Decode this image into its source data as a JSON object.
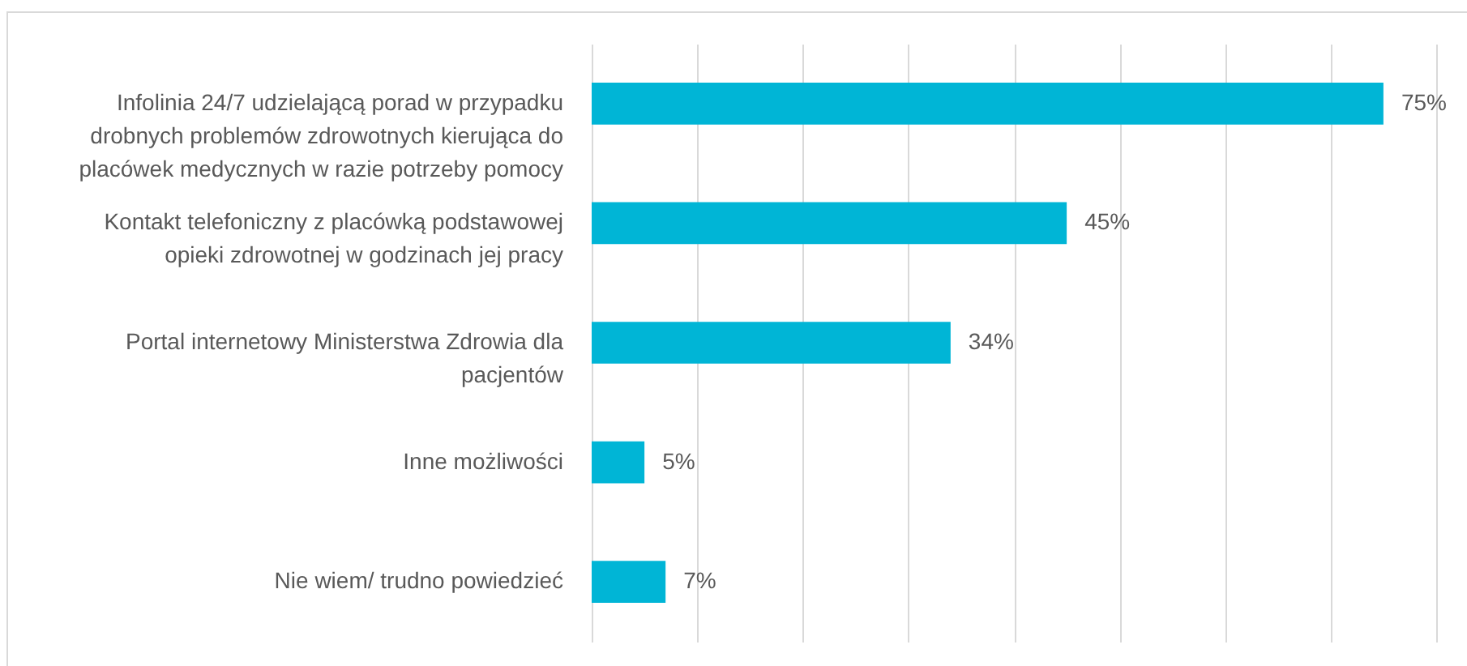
{
  "chart_data": {
    "type": "bar",
    "orientation": "horizontal",
    "categories": [
      "Infolinia 24/7 udzielającą porad w przypadku drobnych problemów zdrowotnych kierująca do placówek medycznych w razie potrzeby pomocy",
      "Kontakt telefoniczny z placówką podstawowej opieki zdrowotnej w godzinach jej pracy",
      "Portal internetowy Ministerstwa Zdrowia dla pacjentów",
      "Inne możliwości",
      "Nie wiem/ trudno powiedzieć"
    ],
    "values": [
      75,
      45,
      34,
      5,
      7
    ],
    "value_labels": [
      "75%",
      "45%",
      "34%",
      "5%",
      "7%"
    ],
    "color": "#00b5d6",
    "xlim": [
      0,
      80
    ],
    "xticks": [
      {
        "value": 0,
        "label": null
      },
      {
        "value": 10,
        "label": null
      },
      {
        "value": 20,
        "label": null
      },
      {
        "value": 30,
        "label": null
      },
      {
        "value": 40,
        "label": null
      },
      {
        "value": 50,
        "label": null
      },
      {
        "value": 60,
        "label": null
      },
      {
        "value": 70,
        "label": null
      },
      {
        "value": 80,
        "label": null
      }
    ],
    "grid": "x",
    "tick_labels": "y"
  }
}
